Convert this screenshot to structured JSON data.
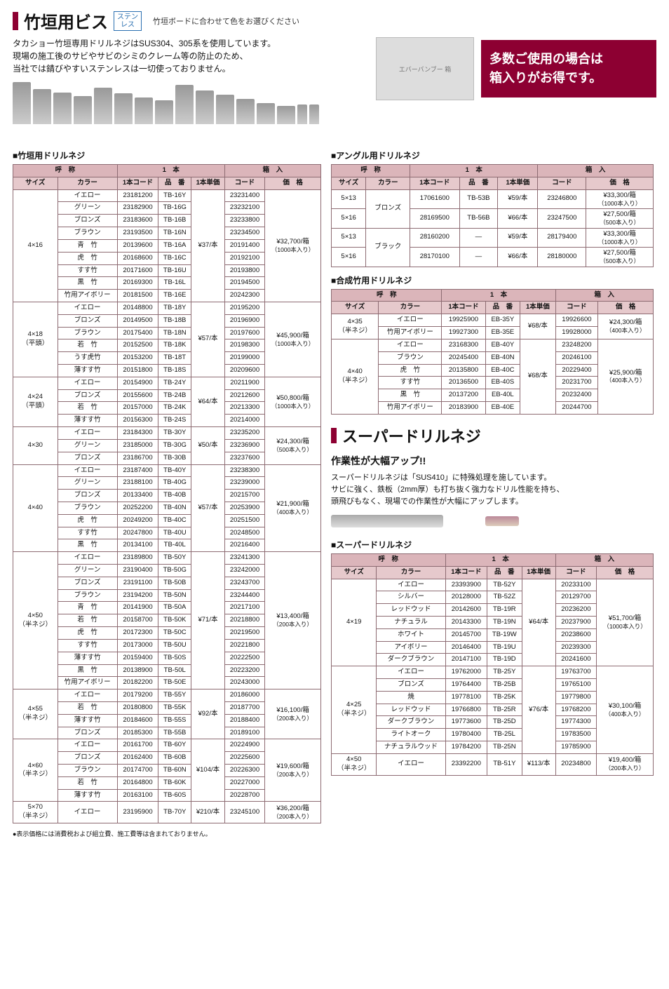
{
  "header": {
    "title": "竹垣用ビス",
    "badge_l1": "ステン",
    "badge_l2": "レス",
    "note": "竹垣ボードに合わせて色をお選びください",
    "intro1": "タカショー竹垣専用ドリルネジはSUS304、305系を使用しています。",
    "intro2": "現場の施工後のサビやサビのシミのクレーム等の防止のため、",
    "intro3": "当社では錆びやすいステンレスは一切使っておりません。"
  },
  "promo": {
    "img_label": "エバーバンブー 箱",
    "line1": "多数ご使用の場合は",
    "line2": "箱入りがお得です。"
  },
  "labels": {
    "sec1": "■竹垣用ドリルネジ",
    "sec2": "■アングル用ドリルネジ",
    "sec3": "■合成竹用ドリルネジ",
    "sec4": "■スーパードリルネジ",
    "h_name": "呼　称",
    "h_one": "1　本",
    "h_box": "箱　入",
    "h_size": "サイズ",
    "h_color": "カラー",
    "h_1code": "1本コード",
    "h_part": "品　番",
    "h_1price": "1本単価",
    "h_code": "コード",
    "h_price": "価　格"
  },
  "t1": [
    {
      "size": "4×16",
      "subsize": "",
      "rows": [
        {
          "c": "イエロー",
          "oc": "23181200",
          "p": "TB-16Y",
          "bc": "23231400"
        },
        {
          "c": "グリーン",
          "oc": "23182900",
          "p": "TB-16G",
          "bc": "23232100"
        },
        {
          "c": "ブロンズ",
          "oc": "23183600",
          "p": "TB-16B",
          "bc": "23233800"
        },
        {
          "c": "ブラウン",
          "oc": "23193500",
          "p": "TB-16N",
          "bc": "23234500"
        },
        {
          "c": "青　竹",
          "oc": "20139600",
          "p": "TB-16A",
          "bc": "20191400"
        },
        {
          "c": "虎　竹",
          "oc": "20168600",
          "p": "TB-16C",
          "bc": "20192100"
        },
        {
          "c": "すす竹",
          "oc": "20171600",
          "p": "TB-16U",
          "bc": "20193800"
        },
        {
          "c": "黒　竹",
          "oc": "20169300",
          "p": "TB-16L",
          "bc": "20194500"
        },
        {
          "c": "竹用アイボリー",
          "oc": "20181500",
          "p": "TB-16E",
          "bc": "20242300"
        }
      ],
      "op": "¥37/本",
      "bp": "¥32,700/箱",
      "pk": "（1000本入り）"
    },
    {
      "size": "4×18",
      "subsize": "（平頭）",
      "rows": [
        {
          "c": "イエロー",
          "oc": "20148800",
          "p": "TB-18Y",
          "bc": "20195200"
        },
        {
          "c": "ブロンズ",
          "oc": "20149500",
          "p": "TB-18B",
          "bc": "20196900"
        },
        {
          "c": "ブラウン",
          "oc": "20175400",
          "p": "TB-18N",
          "bc": "20197600"
        },
        {
          "c": "若　竹",
          "oc": "20152500",
          "p": "TB-18K",
          "bc": "20198300"
        },
        {
          "c": "うす虎竹",
          "oc": "20153200",
          "p": "TB-18T",
          "bc": "20199000"
        },
        {
          "c": "薄すす竹",
          "oc": "20151800",
          "p": "TB-18S",
          "bc": "20209600"
        }
      ],
      "op": "¥57/本",
      "bp": "¥45,900/箱",
      "pk": "（1000本入り）"
    },
    {
      "size": "4×24",
      "subsize": "（平頭）",
      "rows": [
        {
          "c": "イエロー",
          "oc": "20154900",
          "p": "TB-24Y",
          "bc": "20211900"
        },
        {
          "c": "ブロンズ",
          "oc": "20155600",
          "p": "TB-24B",
          "bc": "20212600"
        },
        {
          "c": "若　竹",
          "oc": "20157000",
          "p": "TB-24K",
          "bc": "20213300"
        },
        {
          "c": "薄すす竹",
          "oc": "20156300",
          "p": "TB-24S",
          "bc": "20214000"
        }
      ],
      "op": "¥64/本",
      "bp": "¥50,800/箱",
      "pk": "（1000本入り）"
    },
    {
      "size": "4×30",
      "subsize": "",
      "rows": [
        {
          "c": "イエロー",
          "oc": "23184300",
          "p": "TB-30Y",
          "bc": "23235200"
        },
        {
          "c": "グリーン",
          "oc": "23185000",
          "p": "TB-30G",
          "bc": "23236900"
        },
        {
          "c": "ブロンズ",
          "oc": "23186700",
          "p": "TB-30B",
          "bc": "23237600"
        }
      ],
      "op": "¥50/本",
      "bp": "¥24,300/箱",
      "pk": "（500本入り）"
    },
    {
      "size": "4×40",
      "subsize": "",
      "rows": [
        {
          "c": "イエロー",
          "oc": "23187400",
          "p": "TB-40Y",
          "bc": "23238300"
        },
        {
          "c": "グリーン",
          "oc": "23188100",
          "p": "TB-40G",
          "bc": "23239000"
        },
        {
          "c": "ブロンズ",
          "oc": "20133400",
          "p": "TB-40B",
          "bc": "20215700"
        },
        {
          "c": "ブラウン",
          "oc": "20252200",
          "p": "TB-40N",
          "bc": "20253900"
        },
        {
          "c": "虎　竹",
          "oc": "20249200",
          "p": "TB-40C",
          "bc": "20251500"
        },
        {
          "c": "すす竹",
          "oc": "20247800",
          "p": "TB-40U",
          "bc": "20248500"
        },
        {
          "c": "黒　竹",
          "oc": "20134100",
          "p": "TB-40L",
          "bc": "20216400"
        }
      ],
      "op": "¥57/本",
      "bp": "¥21,900/箱",
      "pk": "（400本入り）"
    },
    {
      "size": "4×50",
      "subsize": "（半ネジ）",
      "rows": [
        {
          "c": "イエロー",
          "oc": "23189800",
          "p": "TB-50Y",
          "bc": "23241300"
        },
        {
          "c": "グリーン",
          "oc": "23190400",
          "p": "TB-50G",
          "bc": "23242000"
        },
        {
          "c": "ブロンズ",
          "oc": "23191100",
          "p": "TB-50B",
          "bc": "23243700"
        },
        {
          "c": "ブラウン",
          "oc": "23194200",
          "p": "TB-50N",
          "bc": "23244400"
        },
        {
          "c": "青　竹",
          "oc": "20141900",
          "p": "TB-50A",
          "bc": "20217100"
        },
        {
          "c": "若　竹",
          "oc": "20158700",
          "p": "TB-50K",
          "bc": "20218800"
        },
        {
          "c": "虎　竹",
          "oc": "20172300",
          "p": "TB-50C",
          "bc": "20219500"
        },
        {
          "c": "すす竹",
          "oc": "20173000",
          "p": "TB-50U",
          "bc": "20221800"
        },
        {
          "c": "薄すす竹",
          "oc": "20159400",
          "p": "TB-50S",
          "bc": "20222500"
        },
        {
          "c": "黒　竹",
          "oc": "20138900",
          "p": "TB-50L",
          "bc": "20223200"
        },
        {
          "c": "竹用アイボリー",
          "oc": "20182200",
          "p": "TB-50E",
          "bc": "20243000"
        }
      ],
      "op": "¥71/本",
      "bp": "¥13,400/箱",
      "pk": "（200本入り）"
    },
    {
      "size": "4×55",
      "subsize": "（半ネジ）",
      "rows": [
        {
          "c": "イエロー",
          "oc": "20179200",
          "p": "TB-55Y",
          "bc": "20186000"
        },
        {
          "c": "若　竹",
          "oc": "20180800",
          "p": "TB-55K",
          "bc": "20187700"
        },
        {
          "c": "薄すす竹",
          "oc": "20184600",
          "p": "TB-55S",
          "bc": "20188400"
        },
        {
          "c": "ブロンズ",
          "oc": "20185300",
          "p": "TB-55B",
          "bc": "20189100"
        }
      ],
      "op": "¥92/本",
      "bp": "¥16,100/箱",
      "pk": "（200本入り）"
    },
    {
      "size": "4×60",
      "subsize": "（半ネジ）",
      "rows": [
        {
          "c": "イエロー",
          "oc": "20161700",
          "p": "TB-60Y",
          "bc": "20224900"
        },
        {
          "c": "ブロンズ",
          "oc": "20162400",
          "p": "TB-60B",
          "bc": "20225600"
        },
        {
          "c": "ブラウン",
          "oc": "20174700",
          "p": "TB-60N",
          "bc": "20226300"
        },
        {
          "c": "若　竹",
          "oc": "20164800",
          "p": "TB-60K",
          "bc": "20227000"
        },
        {
          "c": "薄すす竹",
          "oc": "20163100",
          "p": "TB-60S",
          "bc": "20228700"
        }
      ],
      "op": "¥104/本",
      "bp": "¥19,600/箱",
      "pk": "（200本入り）"
    },
    {
      "size": "5×70",
      "subsize": "（半ネジ）",
      "rows": [
        {
          "c": "イエロー",
          "oc": "23195900",
          "p": "TB-70Y",
          "bc": "23245100"
        }
      ],
      "op": "¥210/本",
      "bp": "¥36,200/箱",
      "pk": "（200本入り）"
    }
  ],
  "t2": [
    {
      "size": "5×13",
      "color": "ブロンズ",
      "cspan": 2,
      "oc": "17061600",
      "p": "TB-53B",
      "op": "¥59/本",
      "bc": "23246800",
      "bp": "¥33,300/箱",
      "pk": "（1000本入り）"
    },
    {
      "size": "5×16",
      "oc": "28169500",
      "p": "TB-56B",
      "op": "¥66/本",
      "bc": "23247500",
      "bp": "¥27,500/箱",
      "pk": "（500本入り）"
    },
    {
      "size": "5×13",
      "color": "ブラック",
      "cspan": 2,
      "oc": "28160200",
      "p": "—",
      "op": "¥59/本",
      "bc": "28179400",
      "bp": "¥33,300/箱",
      "pk": "（1000本入り）"
    },
    {
      "size": "5×16",
      "oc": "28170100",
      "p": "—",
      "op": "¥66/本",
      "bc": "28180000",
      "bp": "¥27,500/箱",
      "pk": "（500本入り）"
    }
  ],
  "t3": [
    {
      "size": "4×35",
      "subsize": "（半ネジ）",
      "rows": [
        {
          "c": "イエロー",
          "oc": "19925900",
          "p": "EB-35Y",
          "bc": "19926600"
        },
        {
          "c": "竹用アイボリー",
          "oc": "19927300",
          "p": "EB-35E",
          "bc": "19928000"
        }
      ],
      "op": "¥68/本",
      "bp": "¥24,300/箱",
      "pk": "（400本入り）"
    },
    {
      "size": "4×40",
      "subsize": "（半ネジ）",
      "rows": [
        {
          "c": "イエロー",
          "oc": "23168300",
          "p": "EB-40Y",
          "bc": "23248200"
        },
        {
          "c": "ブラウン",
          "oc": "20245400",
          "p": "EB-40N",
          "bc": "20246100"
        },
        {
          "c": "虎　竹",
          "oc": "20135800",
          "p": "EB-40C",
          "bc": "20229400"
        },
        {
          "c": "すす竹",
          "oc": "20136500",
          "p": "EB-40S",
          "bc": "20231700"
        },
        {
          "c": "黒　竹",
          "oc": "20137200",
          "p": "EB-40L",
          "bc": "20232400"
        },
        {
          "c": "竹用アイボリー",
          "oc": "20183900",
          "p": "EB-40E",
          "bc": "20244700"
        }
      ],
      "op": "¥68/本",
      "bp": "¥25,900/箱",
      "pk": "（400本入り）"
    }
  ],
  "super": {
    "title": "スーパードリルネジ",
    "lead": "作業性が大幅アップ!!",
    "d1": "スーパードリルネジは「SUS410」に特殊処理を施しています。",
    "d2": "サビに強く、鉄板（2mm厚）も打ち抜く強力なドリル性能を持ち、",
    "d3": "頭飛びもなく、現場での作業性が大幅にアップします。"
  },
  "t4": [
    {
      "size": "4×19",
      "subsize": "",
      "rows": [
        {
          "c": "イエロー",
          "oc": "23393900",
          "p": "TB-52Y",
          "bc": "20233100"
        },
        {
          "c": "シルバー",
          "oc": "20128000",
          "p": "TB-52Z",
          "bc": "20129700"
        },
        {
          "c": "レッドウッド",
          "oc": "20142600",
          "p": "TB-19R",
          "bc": "20236200"
        },
        {
          "c": "ナチュラル",
          "oc": "20143300",
          "p": "TB-19N",
          "bc": "20237900"
        },
        {
          "c": "ホワイト",
          "oc": "20145700",
          "p": "TB-19W",
          "bc": "20238600"
        },
        {
          "c": "アイボリー",
          "oc": "20146400",
          "p": "TB-19U",
          "bc": "20239300"
        },
        {
          "c": "ダークブラウン",
          "oc": "20147100",
          "p": "TB-19D",
          "bc": "20241600"
        }
      ],
      "op": "¥64/本",
      "bp": "¥51,700/箱",
      "pk": "（1000本入り）"
    },
    {
      "size": "4×25",
      "subsize": "（半ネジ）",
      "rows": [
        {
          "c": "イエロー",
          "oc": "19762000",
          "p": "TB-25Y",
          "bc": "19763700"
        },
        {
          "c": "ブロンズ",
          "oc": "19764400",
          "p": "TB-25B",
          "bc": "19765100"
        },
        {
          "c": "焼",
          "oc": "19778100",
          "p": "TB-25K",
          "bc": "19779800"
        },
        {
          "c": "レッドウッド",
          "oc": "19766800",
          "p": "TB-25R",
          "bc": "19768200"
        },
        {
          "c": "ダークブラウン",
          "oc": "19773600",
          "p": "TB-25D",
          "bc": "19774300"
        },
        {
          "c": "ライトオーク",
          "oc": "19780400",
          "p": "TB-25L",
          "bc": "19783500"
        },
        {
          "c": "ナチュラルウッド",
          "oc": "19784200",
          "p": "TB-25N",
          "bc": "19785900"
        }
      ],
      "op": "¥76/本",
      "bp": "¥30,100/箱",
      "pk": "（400本入り）"
    },
    {
      "size": "4×50",
      "subsize": "（半ネジ）",
      "rows": [
        {
          "c": "イエロー",
          "oc": "23392200",
          "p": "TB-51Y",
          "bc": "20234800"
        }
      ],
      "op": "¥113/本",
      "bp": "¥19,400/箱",
      "pk": "（200本入り）"
    }
  ],
  "footnote": "●表示価格には消費税および組立費、施工費等は含まれておりません。"
}
